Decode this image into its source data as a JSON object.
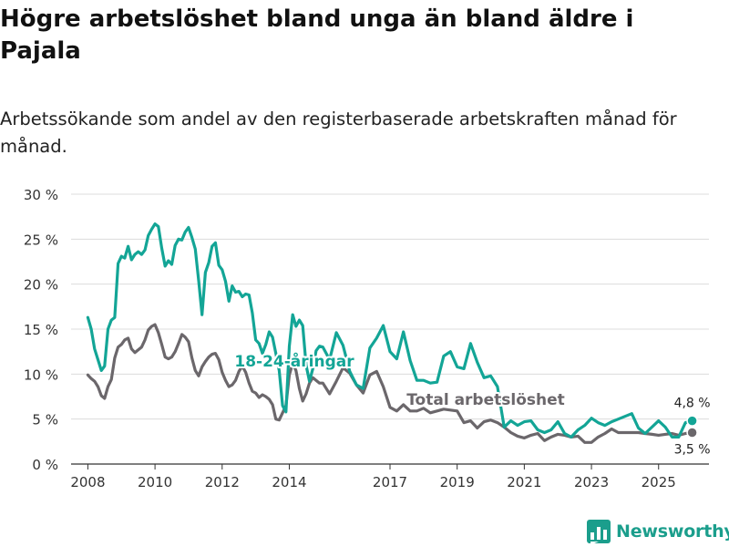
{
  "title": "Högre arbetslöshet bland unga än bland äldre i Pajala",
  "subtitle": "Arbetssökande som andel av den registerbaserade arbetskraften månad för månad.",
  "brand": {
    "name": "Newsworthy",
    "icon": "bar-chart-logo-icon"
  },
  "colors": {
    "youth": "#13a596",
    "total": "#6b676b",
    "grid": "#dcdcdc",
    "text": "#333333"
  },
  "chart_data": {
    "type": "line",
    "title": "Högre arbetslöshet bland unga än bland äldre i Pajala",
    "subtitle": "Arbetssökande som andel av den registerbaserade arbetskraften månad för månad.",
    "xlabel": "",
    "ylabel": "",
    "xlim": [
      2007.5,
      2026.5
    ],
    "ylim": [
      0,
      30
    ],
    "grid": true,
    "y_ticks": [
      {
        "value": 0,
        "label": "0 %"
      },
      {
        "value": 5,
        "label": "5 %"
      },
      {
        "value": 10,
        "label": "10 %"
      },
      {
        "value": 15,
        "label": "15 %"
      },
      {
        "value": 20,
        "label": "20 %"
      },
      {
        "value": 25,
        "label": "25 %"
      },
      {
        "value": 30,
        "label": "30 %"
      }
    ],
    "x_ticks": [
      {
        "value": 2008,
        "label": "2008"
      },
      {
        "value": 2010,
        "label": "2010"
      },
      {
        "value": 2012,
        "label": "2012"
      },
      {
        "value": 2014,
        "label": "2014"
      },
      {
        "value": 2017,
        "label": "2017"
      },
      {
        "value": 2019,
        "label": "2019"
      },
      {
        "value": 2021,
        "label": "2021"
      },
      {
        "value": 2023,
        "label": "2023"
      },
      {
        "value": 2025,
        "label": "2025"
      }
    ],
    "series": [
      {
        "name": "Total arbetslöshet",
        "label": "Total arbetslöshet",
        "color": "#6b676b",
        "end_label": "3,5 %",
        "x": [
          2008.0,
          2008.1,
          2008.2,
          2008.3,
          2008.4,
          2008.5,
          2008.6,
          2008.7,
          2008.8,
          2008.9,
          2009.0,
          2009.1,
          2009.2,
          2009.3,
          2009.4,
          2009.5,
          2009.6,
          2009.7,
          2009.8,
          2009.9,
          2010.0,
          2010.1,
          2010.2,
          2010.3,
          2010.4,
          2010.5,
          2010.6,
          2010.7,
          2010.8,
          2010.9,
          2011.0,
          2011.1,
          2011.2,
          2011.3,
          2011.4,
          2011.5,
          2011.6,
          2011.7,
          2011.8,
          2011.9,
          2012.0,
          2012.1,
          2012.2,
          2012.3,
          2012.4,
          2012.5,
          2012.6,
          2012.7,
          2012.8,
          2012.9,
          2013.0,
          2013.1,
          2013.2,
          2013.3,
          2013.4,
          2013.5,
          2013.6,
          2013.7,
          2013.8,
          2013.9,
          2014.0,
          2014.1,
          2014.2,
          2014.3,
          2014.4,
          2014.5,
          2014.6,
          2014.7,
          2014.8,
          2014.9,
          2015.0,
          2015.2,
          2015.4,
          2015.6,
          2015.8,
          2016.0,
          2016.2,
          2016.4,
          2016.6,
          2016.8,
          2017.0,
          2017.2,
          2017.4,
          2017.6,
          2017.8,
          2018.0,
          2018.2,
          2018.4,
          2018.6,
          2018.8,
          2019.0,
          2019.2,
          2019.4,
          2019.6,
          2019.8,
          2020.0,
          2020.2,
          2020.4,
          2020.6,
          2020.8,
          2021.0,
          2021.2,
          2021.4,
          2021.6,
          2021.8,
          2022.0,
          2022.2,
          2022.4,
          2022.6,
          2022.8,
          2023.0,
          2023.2,
          2023.4,
          2023.6,
          2023.8,
          2024.0,
          2024.2,
          2024.4,
          2024.6,
          2024.8,
          2025.0,
          2025.2,
          2025.4,
          2025.6,
          2025.8,
          2026.0
        ],
        "values": [
          9.9,
          9.5,
          9.2,
          8.6,
          7.6,
          7.3,
          8.6,
          9.4,
          11.8,
          13.0,
          13.3,
          13.8,
          14.0,
          12.8,
          12.4,
          12.7,
          13.0,
          13.8,
          14.9,
          15.3,
          15.5,
          14.6,
          13.3,
          11.9,
          11.7,
          11.9,
          12.5,
          13.4,
          14.4,
          14.1,
          13.6,
          11.8,
          10.4,
          9.8,
          10.8,
          11.4,
          11.9,
          12.2,
          12.3,
          11.6,
          10.2,
          9.3,
          8.6,
          8.8,
          9.3,
          10.3,
          10.9,
          10.2,
          9.0,
          8.1,
          7.9,
          7.4,
          7.7,
          7.5,
          7.2,
          6.6,
          5.0,
          4.9,
          5.7,
          6.5,
          9.9,
          11.2,
          10.4,
          8.4,
          7.0,
          7.8,
          9.0,
          9.6,
          9.3,
          9.0,
          9.0,
          7.8,
          9.2,
          10.7,
          10.1,
          8.8,
          7.9,
          9.9,
          10.3,
          8.6,
          6.3,
          5.9,
          6.6,
          5.9,
          5.9,
          6.2,
          5.7,
          5.9,
          6.1,
          6.0,
          5.9,
          4.6,
          4.8,
          4.0,
          4.7,
          4.9,
          4.6,
          4.1,
          3.5,
          3.1,
          2.9,
          3.2,
          3.4,
          2.6,
          3.0,
          3.3,
          3.2,
          3.0,
          3.1,
          2.4,
          2.4,
          3.0,
          3.4,
          3.9,
          3.5,
          3.5,
          3.5,
          3.5,
          3.4,
          3.3,
          3.2,
          3.3,
          3.4,
          3.2,
          3.4,
          3.5
        ]
      },
      {
        "name": "18-24-åringar",
        "label": "18-24-åringar",
        "color": "#13a596",
        "end_label": "4,8 %",
        "x": [
          2008.0,
          2008.1,
          2008.2,
          2008.3,
          2008.4,
          2008.5,
          2008.6,
          2008.7,
          2008.8,
          2008.9,
          2009.0,
          2009.1,
          2009.2,
          2009.3,
          2009.4,
          2009.5,
          2009.6,
          2009.7,
          2009.8,
          2009.9,
          2010.0,
          2010.1,
          2010.2,
          2010.3,
          2010.4,
          2010.5,
          2010.6,
          2010.7,
          2010.8,
          2010.9,
          2011.0,
          2011.1,
          2011.2,
          2011.3,
          2011.4,
          2011.5,
          2011.6,
          2011.7,
          2011.8,
          2011.9,
          2012.0,
          2012.1,
          2012.2,
          2012.3,
          2012.4,
          2012.5,
          2012.6,
          2012.7,
          2012.8,
          2012.9,
          2013.0,
          2013.1,
          2013.2,
          2013.3,
          2013.4,
          2013.5,
          2013.6,
          2013.7,
          2013.8,
          2013.9,
          2014.0,
          2014.1,
          2014.2,
          2014.3,
          2014.4,
          2014.5,
          2014.6,
          2014.7,
          2014.8,
          2014.9,
          2015.0,
          2015.2,
          2015.4,
          2015.6,
          2015.8,
          2016.0,
          2016.2,
          2016.4,
          2016.6,
          2016.8,
          2017.0,
          2017.2,
          2017.4,
          2017.6,
          2017.8,
          2018.0,
          2018.2,
          2018.4,
          2018.6,
          2018.8,
          2019.0,
          2019.2,
          2019.4,
          2019.6,
          2019.8,
          2020.0,
          2020.2,
          2020.4,
          2020.6,
          2020.8,
          2021.0,
          2021.2,
          2021.4,
          2021.6,
          2021.8,
          2022.0,
          2022.2,
          2022.4,
          2022.6,
          2022.8,
          2023.0,
          2023.2,
          2023.4,
          2023.6,
          2023.8,
          2024.0,
          2024.2,
          2024.4,
          2024.6,
          2024.8,
          2025.0,
          2025.2,
          2025.4,
          2025.6,
          2025.8,
          2026.0
        ],
        "values": [
          16.3,
          15.0,
          12.8,
          11.6,
          10.4,
          10.9,
          15.0,
          16.0,
          16.3,
          22.3,
          23.1,
          22.9,
          24.2,
          22.7,
          23.3,
          23.6,
          23.3,
          23.8,
          25.4,
          26.1,
          26.7,
          26.4,
          24.0,
          22.0,
          22.6,
          22.2,
          24.3,
          25.0,
          24.9,
          25.8,
          26.3,
          25.2,
          23.9,
          20.4,
          16.6,
          21.3,
          22.4,
          24.2,
          24.6,
          22.1,
          21.6,
          20.3,
          18.1,
          19.8,
          19.1,
          19.2,
          18.6,
          18.9,
          18.8,
          16.8,
          13.8,
          13.4,
          12.3,
          13.3,
          14.7,
          14.1,
          12.3,
          10.4,
          6.5,
          5.8,
          13.1,
          16.6,
          15.3,
          16.0,
          15.4,
          11.0,
          9.2,
          10.6,
          12.6,
          13.1,
          13.0,
          11.6,
          14.6,
          13.2,
          10.3,
          8.8,
          8.4,
          12.9,
          14.0,
          15.4,
          12.5,
          11.7,
          14.7,
          11.5,
          9.3,
          9.3,
          9.0,
          9.1,
          12.0,
          12.5,
          10.8,
          10.6,
          13.4,
          11.3,
          9.6,
          9.8,
          8.6,
          4.1,
          4.8,
          4.3,
          4.7,
          4.8,
          3.8,
          3.5,
          3.8,
          4.7,
          3.4,
          3.0,
          3.8,
          4.3,
          5.1,
          4.6,
          4.3,
          4.7,
          5.0,
          5.3,
          5.6,
          4.0,
          3.4,
          4.1,
          4.8,
          4.1,
          3.0,
          3.0,
          4.6,
          4.8
        ]
      }
    ]
  }
}
